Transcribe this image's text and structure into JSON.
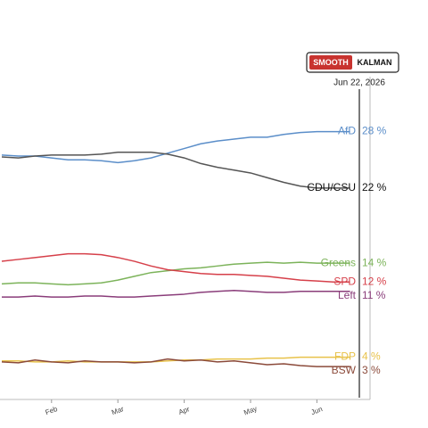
{
  "chart_data": {
    "type": "line",
    "categories": [
      null,
      null,
      null,
      "Feb",
      null,
      null,
      null,
      "Mar",
      null,
      null,
      null,
      "Apr",
      null,
      null,
      null,
      "May",
      null,
      null,
      null,
      "Jun",
      null,
      null
    ],
    "ylim": [
      -0.5,
      42
    ],
    "cursor_label": "Jun 22, 2026",
    "buttons": [
      "SMOOTH",
      "KALMAN"
    ],
    "series": [
      {
        "name": "AfD",
        "color": "#5b8ec9",
        "end_label": "28 %",
        "values": [
          25.5,
          25.4,
          25.4,
          25.2,
          25.0,
          25.0,
          24.9,
          24.7,
          24.9,
          25.2,
          25.7,
          26.2,
          26.7,
          27.0,
          27.2,
          27.4,
          27.4,
          27.7,
          27.9,
          28.0,
          28.0,
          28
        ]
      },
      {
        "name": "CDU/CSU",
        "color": "#555555",
        "label_color": "#111111",
        "end_label": "22 %",
        "values": [
          25.3,
          25.2,
          25.4,
          25.5,
          25.5,
          25.5,
          25.6,
          25.8,
          25.8,
          25.8,
          25.6,
          25.2,
          24.6,
          24.2,
          23.9,
          23.6,
          23.1,
          22.6,
          22.2,
          22.0,
          22.0,
          22
        ]
      },
      {
        "name": "Greens",
        "color": "#7cb35a",
        "end_label": "14 %",
        "values": [
          11.8,
          11.9,
          11.9,
          11.8,
          11.7,
          11.8,
          11.9,
          12.2,
          12.6,
          13.0,
          13.2,
          13.4,
          13.5,
          13.7,
          13.9,
          14.0,
          14.1,
          14.0,
          14.1,
          14.0,
          14.0,
          14
        ]
      },
      {
        "name": "SPD",
        "color": "#d6404a",
        "end_label": "12 %",
        "values": [
          14.2,
          14.4,
          14.6,
          14.8,
          15.0,
          15.0,
          14.9,
          14.6,
          14.2,
          13.7,
          13.3,
          13.1,
          12.9,
          12.8,
          12.8,
          12.7,
          12.6,
          12.4,
          12.2,
          12.1,
          12.0,
          12
        ]
      },
      {
        "name": "Left",
        "color": "#8a3d7a",
        "end_label": "11 %",
        "values": [
          10.4,
          10.4,
          10.5,
          10.4,
          10.4,
          10.5,
          10.5,
          10.4,
          10.4,
          10.5,
          10.6,
          10.7,
          10.9,
          11.0,
          11.1,
          11.0,
          10.9,
          10.9,
          11.0,
          11.0,
          11.0,
          11
        ]
      },
      {
        "name": "FDP",
        "color": "#e8c24a",
        "end_label": "4 %",
        "values": [
          3.6,
          3.6,
          3.5,
          3.5,
          3.6,
          3.5,
          3.5,
          3.5,
          3.5,
          3.5,
          3.6,
          3.7,
          3.7,
          3.8,
          3.8,
          3.8,
          3.9,
          3.9,
          4.0,
          4.0,
          4.0,
          4
        ]
      },
      {
        "name": "BSW",
        "color": "#8b4a3a",
        "end_label": "3 %",
        "values": [
          3.5,
          3.4,
          3.7,
          3.5,
          3.4,
          3.6,
          3.5,
          3.5,
          3.4,
          3.5,
          3.8,
          3.6,
          3.7,
          3.5,
          3.6,
          3.4,
          3.2,
          3.3,
          3.1,
          3.0,
          3.0,
          3
        ]
      }
    ]
  }
}
